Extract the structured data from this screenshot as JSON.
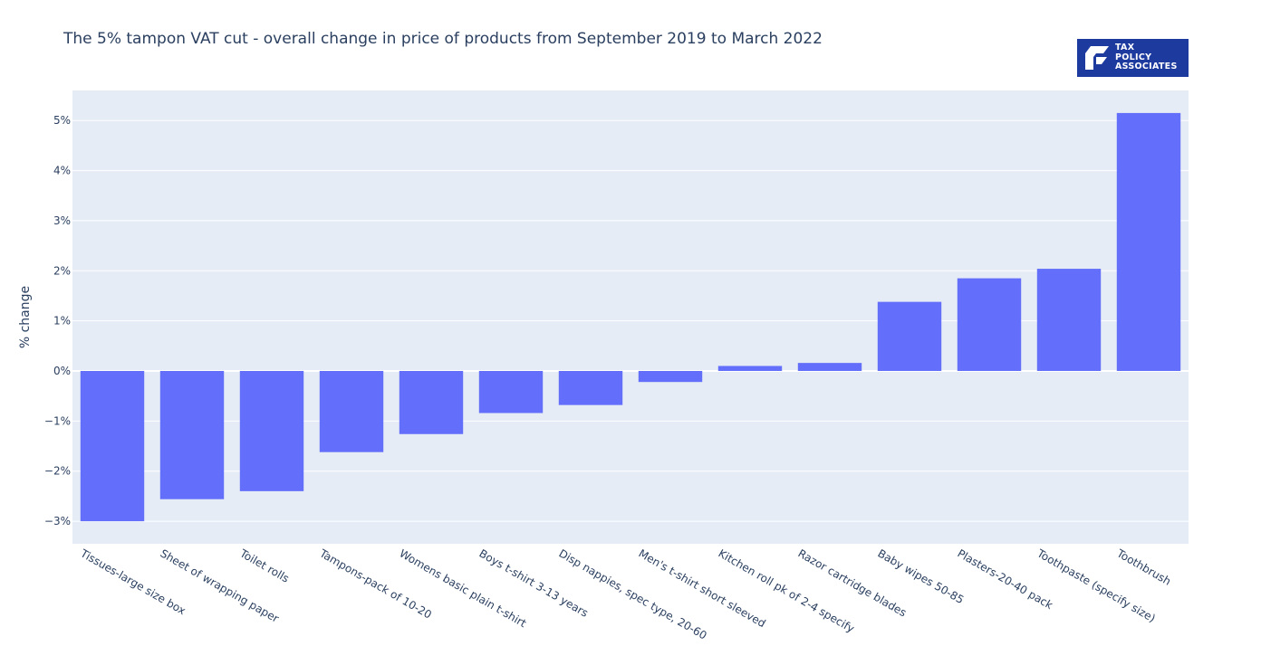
{
  "chart_data": {
    "type": "bar",
    "title": "The 5% tampon VAT cut - overall change in price of products from September 2019 to March 2022",
    "xlabel": "",
    "ylabel": "% change",
    "categories": [
      "Tissues-large size box",
      "Sheet of wrapping paper",
      "Toilet rolls",
      "Tampons-pack of 10-20",
      "Womens basic plain t-shirt",
      "Boys t-shirt 3-13 years",
      "Disp nappies, spec type, 20-60",
      "Men's t-shirt short sleeved",
      "Kitchen roll pk of 2-4 specify",
      "Razor cartridge blades",
      "Baby wipes 50-85",
      "Plasters-20-40 pack",
      "Toothpaste (specify size)",
      "Toothbrush"
    ],
    "values": [
      -3.0,
      -2.56,
      -2.4,
      -1.62,
      -1.26,
      -0.84,
      -0.68,
      -0.22,
      0.1,
      0.16,
      1.38,
      1.85,
      2.04,
      5.15
    ],
    "ylim": [
      -3.45,
      5.6
    ],
    "yticks": [
      -3,
      -2,
      -1,
      0,
      1,
      2,
      3,
      4,
      5
    ],
    "ytick_labels": [
      "−3%",
      "−2%",
      "−1%",
      "0%",
      "1%",
      "2%",
      "3%",
      "4%",
      "5%"
    ],
    "grid": true,
    "bar_color": "#636efa",
    "plot_bg": "#e5ecf6"
  },
  "logo": {
    "lines": [
      "TAX",
      "POLICY",
      "ASSOCIATES"
    ],
    "color": "#1d3a9e"
  }
}
